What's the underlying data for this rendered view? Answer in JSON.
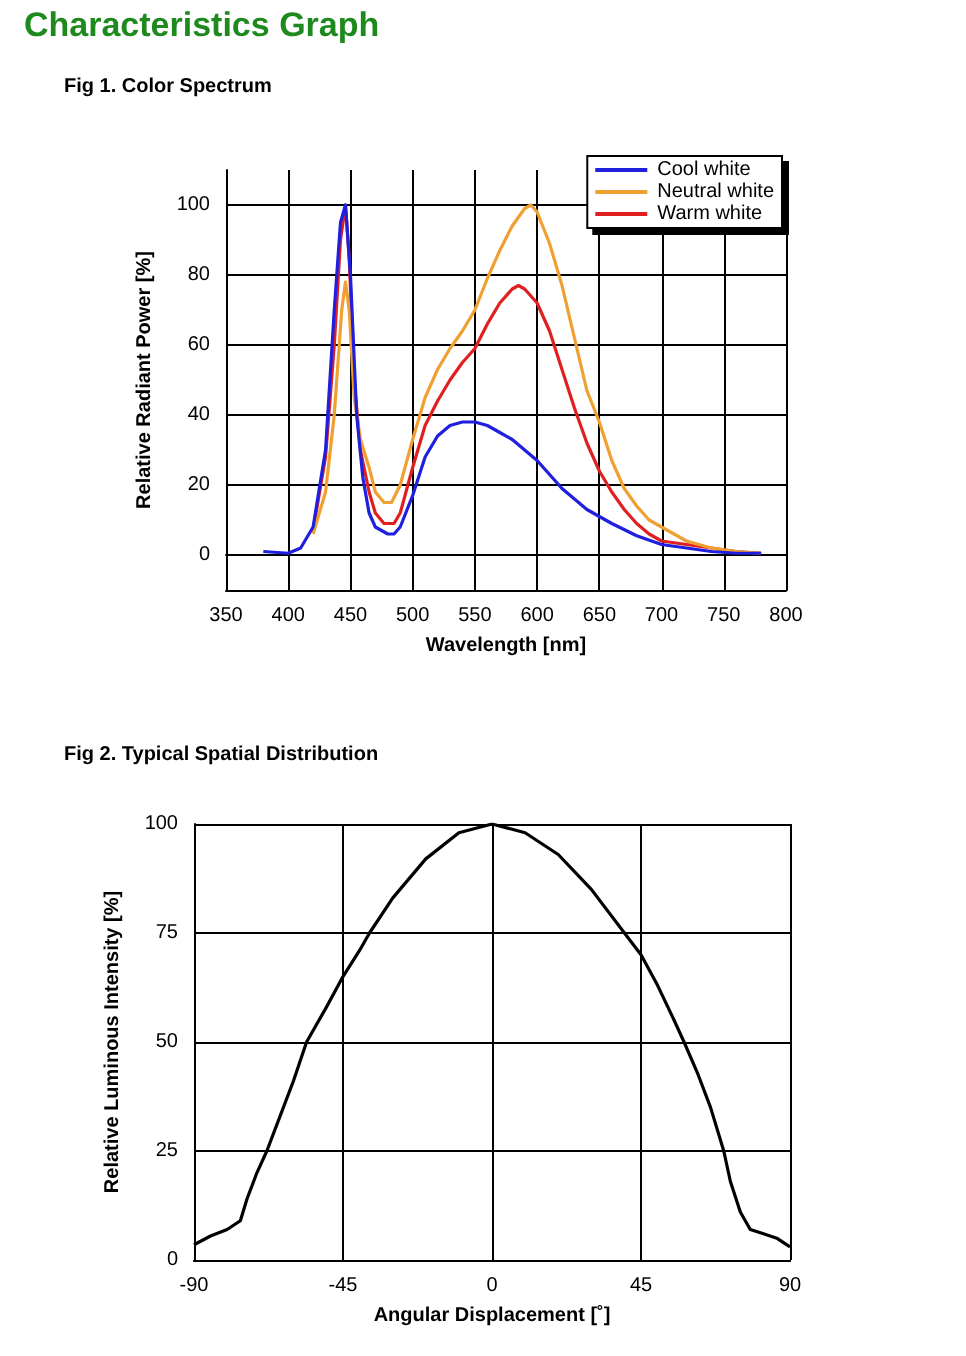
{
  "chart_data": [
    {
      "type": "line",
      "title": "Characteristics Graph",
      "subtitle": "Fig 1. Color Spectrum",
      "xlabel": "Wavelength [nm]",
      "ylabel": "Relative Radiant Power [%]",
      "xlim": [
        350,
        800
      ],
      "xticks": [
        350,
        400,
        450,
        500,
        550,
        600,
        650,
        700,
        750,
        800
      ],
      "ylim": [
        -10,
        110
      ],
      "yticks": [
        0,
        20,
        40,
        60,
        80,
        100
      ],
      "grid": true,
      "legend": "top right",
      "marker": "none",
      "line_style": "solid",
      "series": [
        {
          "name": "Cool white",
          "color": "#1f1fdd",
          "x": [
            380,
            400,
            410,
            420,
            430,
            437,
            442,
            446,
            450,
            455,
            460,
            465,
            470,
            480,
            485,
            490,
            500,
            510,
            520,
            530,
            540,
            550,
            560,
            570,
            580,
            590,
            600,
            620,
            640,
            650,
            660,
            680,
            700,
            720,
            740,
            760,
            780
          ],
          "values": [
            1,
            0.5,
            2,
            8,
            30,
            70,
            95,
            100,
            80,
            40,
            22,
            12,
            8,
            6,
            6,
            8,
            17,
            28,
            34,
            37,
            38,
            38,
            37,
            35,
            33,
            30,
            27,
            19,
            13,
            11,
            9,
            5.5,
            3,
            2,
            1,
            0.5,
            0.5
          ]
        },
        {
          "name": "Neutral white",
          "color": "#f0a030",
          "x": [
            420,
            430,
            437,
            443,
            446,
            449,
            453,
            458,
            465,
            470,
            477,
            483,
            490,
            500,
            510,
            520,
            530,
            540,
            550,
            560,
            570,
            580,
            590,
            595,
            600,
            610,
            620,
            630,
            640,
            650,
            660,
            670,
            680,
            690,
            700,
            720,
            740,
            760,
            780
          ],
          "values": [
            6,
            18,
            40,
            70,
            78,
            70,
            45,
            33,
            25,
            18,
            15,
            15,
            20,
            33,
            45,
            53,
            59,
            64,
            70,
            79,
            87,
            94,
            99,
            100,
            98,
            89,
            77,
            62,
            47,
            38,
            27,
            19,
            14,
            10,
            8,
            4,
            2,
            1,
            0.5
          ]
        },
        {
          "name": "Warm white",
          "color": "#e02020",
          "x": [
            420,
            430,
            437,
            442,
            446,
            449,
            453,
            458,
            465,
            470,
            477,
            485,
            490,
            500,
            510,
            520,
            530,
            540,
            550,
            560,
            570,
            580,
            585,
            590,
            600,
            610,
            620,
            630,
            640,
            650,
            660,
            670,
            680,
            690,
            700,
            720,
            740,
            760,
            780
          ],
          "values": [
            7,
            28,
            60,
            90,
            100,
            85,
            50,
            30,
            18,
            12,
            9,
            9,
            12,
            25,
            37,
            44,
            50,
            55,
            59,
            66,
            72,
            76,
            77,
            76,
            72,
            64,
            53,
            42,
            32,
            24,
            18,
            13,
            9,
            6,
            4,
            3,
            2,
            1,
            0.5
          ]
        }
      ]
    },
    {
      "type": "line",
      "title": "Fig 2. Typical Spatial Distribution",
      "xlabel": "Angular Displacement [˚]",
      "ylabel": "Relative Luminous Intensity [%]",
      "xlim": [
        -90,
        90
      ],
      "xticks": [
        -90,
        -45,
        0,
        45,
        90
      ],
      "ylim": [
        0,
        100
      ],
      "yticks": [
        0,
        25,
        50,
        75,
        100
      ],
      "grid": true,
      "marker": "none",
      "line_style": "solid",
      "series": [
        {
          "color": "#000000",
          "x": [
            -90,
            -85,
            -80,
            -76,
            -74,
            -71,
            -68,
            -64,
            -60,
            -56,
            -50,
            -45,
            -40,
            -37,
            -30,
            -20,
            -10,
            0,
            10,
            20,
            30,
            40,
            45,
            50,
            55,
            58,
            62,
            66,
            70,
            72,
            75,
            78,
            82,
            86,
            90
          ],
          "values": [
            3.5,
            5.5,
            7,
            9,
            14,
            20,
            25,
            33,
            41,
            50,
            58,
            65,
            71,
            75,
            83,
            92,
            98,
            100,
            98,
            93,
            85,
            75,
            70,
            63,
            55,
            50,
            43,
            35,
            25,
            18,
            11,
            7,
            6,
            5,
            3
          ]
        }
      ]
    }
  ]
}
